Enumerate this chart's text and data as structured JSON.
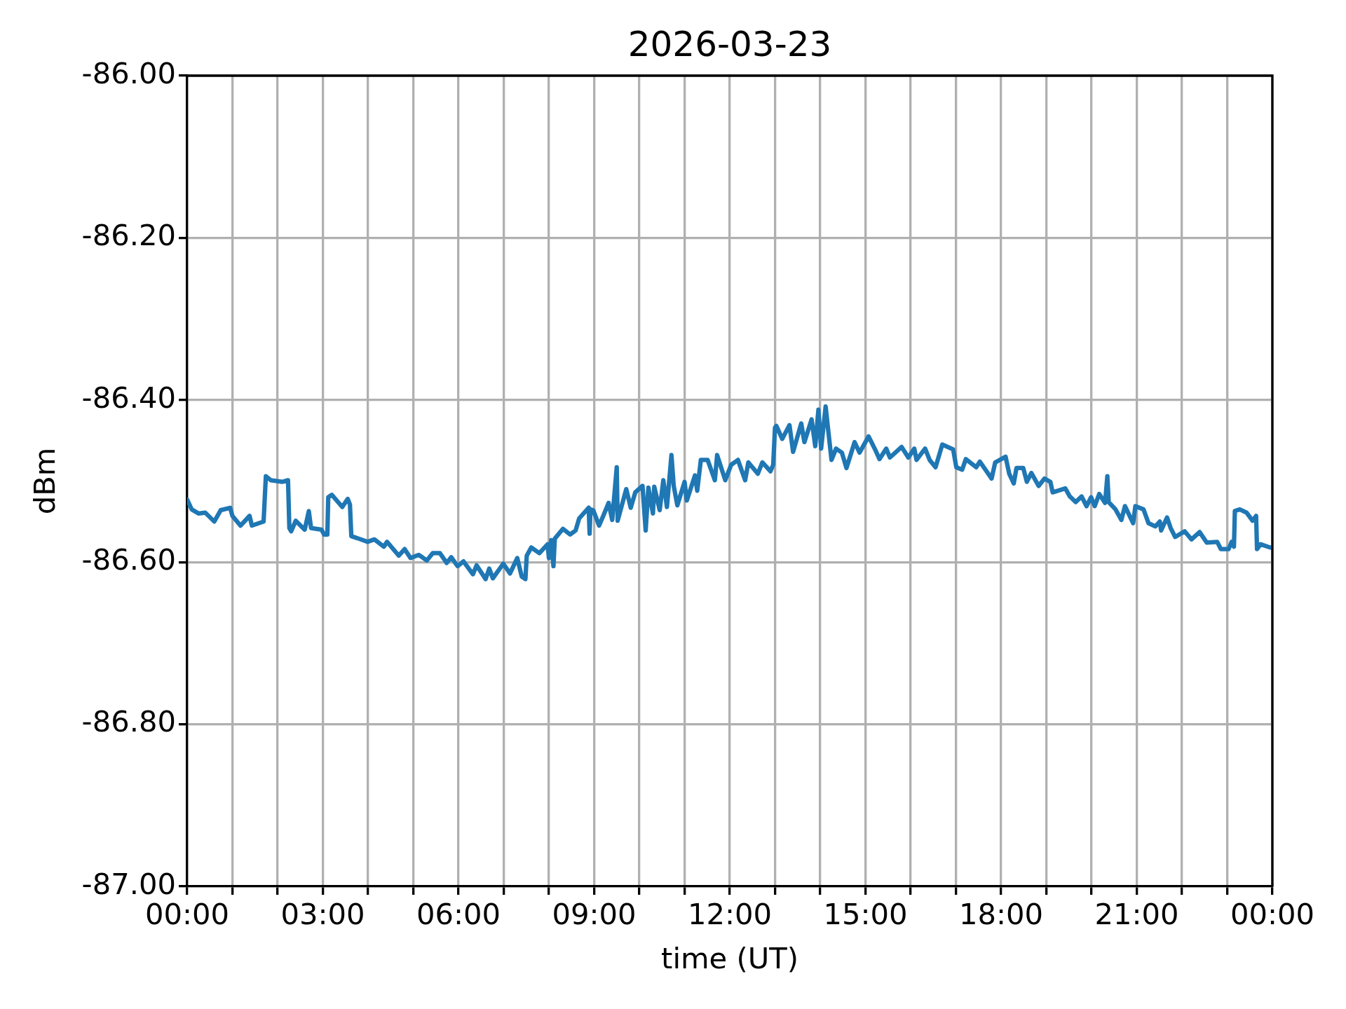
{
  "chart_data": {
    "type": "line",
    "title": "2026-03-23",
    "xlabel": "time (UT)",
    "ylabel": "dBm",
    "x": [
      0.0,
      0.1,
      0.25,
      0.4,
      0.6,
      0.74,
      0.95,
      1.0,
      1.18,
      1.38,
      1.43,
      1.69,
      1.74,
      1.85,
      2.1,
      2.23,
      2.26,
      2.3,
      2.4,
      2.6,
      2.69,
      2.74,
      2.97,
      3.03,
      3.1,
      3.12,
      3.2,
      3.43,
      3.55,
      3.6,
      3.63,
      3.79,
      3.99,
      4.14,
      4.35,
      4.42,
      4.68,
      4.81,
      4.94,
      5.12,
      5.3,
      5.43,
      5.59,
      5.74,
      5.84,
      5.98,
      6.11,
      6.32,
      6.4,
      6.6,
      6.68,
      6.76,
      6.99,
      7.14,
      7.3,
      7.4,
      7.48,
      7.51,
      7.61,
      7.79,
      7.97,
      8.0,
      8.05,
      8.1,
      8.13,
      8.31,
      8.47,
      8.59,
      8.67,
      8.88,
      8.9,
      8.92,
      8.98,
      9.11,
      9.21,
      9.32,
      9.4,
      9.5,
      9.52,
      9.71,
      9.81,
      9.91,
      10.07,
      10.14,
      10.2,
      10.3,
      10.33,
      10.45,
      10.53,
      10.61,
      10.71,
      10.76,
      10.84,
      11.0,
      11.05,
      11.23,
      11.28,
      11.36,
      11.51,
      11.67,
      11.72,
      11.9,
      12.03,
      12.18,
      12.34,
      12.41,
      12.62,
      12.72,
      12.9,
      12.96,
      13.0,
      13.03,
      13.16,
      13.32,
      13.4,
      13.58,
      13.65,
      13.81,
      13.89,
      13.96,
      14.02,
      14.12,
      14.17,
      14.25,
      14.35,
      14.48,
      14.58,
      14.76,
      14.87,
      15.07,
      15.23,
      15.31,
      15.46,
      15.54,
      15.8,
      15.95,
      16.08,
      16.13,
      16.32,
      16.42,
      16.55,
      16.7,
      16.94,
      17.01,
      17.14,
      17.22,
      17.45,
      17.53,
      17.79,
      17.87,
      18.1,
      18.18,
      18.28,
      18.34,
      18.49,
      18.57,
      18.67,
      18.83,
      18.96,
      19.09,
      19.14,
      19.42,
      19.52,
      19.65,
      19.78,
      19.89,
      19.99,
      20.07,
      20.17,
      20.3,
      20.35,
      20.38,
      20.53,
      20.66,
      20.74,
      20.92,
      20.97,
      21.15,
      21.26,
      21.41,
      21.51,
      21.54,
      21.67,
      21.75,
      21.85,
      22.06,
      22.21,
      22.39,
      22.55,
      22.78,
      22.86,
      23.03,
      23.1,
      23.15,
      23.17,
      23.28,
      23.43,
      23.56,
      23.64,
      23.66,
      23.74,
      23.95,
      24.0
    ],
    "values": [
      -86.523,
      -86.535,
      -86.54,
      -86.539,
      -86.55,
      -86.536,
      -86.533,
      -86.543,
      -86.555,
      -86.543,
      -86.555,
      -86.55,
      -86.494,
      -86.499,
      -86.501,
      -86.499,
      -86.558,
      -86.562,
      -86.549,
      -86.56,
      -86.537,
      -86.558,
      -86.56,
      -86.566,
      -86.566,
      -86.52,
      -86.517,
      -86.532,
      -86.522,
      -86.529,
      -86.568,
      -86.571,
      -86.575,
      -86.572,
      -86.581,
      -86.575,
      -86.592,
      -86.584,
      -86.595,
      -86.591,
      -86.598,
      -86.589,
      -86.589,
      -86.601,
      -86.594,
      -86.605,
      -86.599,
      -86.615,
      -86.604,
      -86.621,
      -86.608,
      -86.62,
      -86.602,
      -86.614,
      -86.595,
      -86.618,
      -86.621,
      -86.592,
      -86.582,
      -86.589,
      -86.578,
      -86.595,
      -86.573,
      -86.605,
      -86.571,
      -86.559,
      -86.566,
      -86.561,
      -86.546,
      -86.533,
      -86.565,
      -86.535,
      -86.536,
      -86.555,
      -86.542,
      -86.527,
      -86.548,
      -86.483,
      -86.549,
      -86.51,
      -86.533,
      -86.514,
      -86.506,
      -86.561,
      -86.508,
      -86.54,
      -86.507,
      -86.536,
      -86.499,
      -86.532,
      -86.468,
      -86.506,
      -86.53,
      -86.501,
      -86.524,
      -86.493,
      -86.512,
      -86.474,
      -86.474,
      -86.499,
      -86.468,
      -86.499,
      -86.48,
      -86.474,
      -86.499,
      -86.477,
      -86.491,
      -86.477,
      -86.488,
      -86.48,
      -86.434,
      -86.432,
      -86.448,
      -86.431,
      -86.464,
      -86.429,
      -86.452,
      -86.424,
      -86.457,
      -86.412,
      -86.46,
      -86.408,
      -86.434,
      -86.474,
      -86.46,
      -86.465,
      -86.484,
      -86.452,
      -86.465,
      -86.445,
      -86.463,
      -86.473,
      -86.46,
      -86.471,
      -86.458,
      -86.471,
      -86.46,
      -86.474,
      -86.46,
      -86.474,
      -86.483,
      -86.455,
      -86.461,
      -86.483,
      -86.486,
      -86.473,
      -86.483,
      -86.476,
      -86.497,
      -86.477,
      -86.47,
      -86.491,
      -86.503,
      -86.484,
      -86.484,
      -86.501,
      -86.49,
      -86.506,
      -86.497,
      -86.501,
      -86.514,
      -86.509,
      -86.519,
      -86.526,
      -86.519,
      -86.531,
      -86.52,
      -86.531,
      -86.516,
      -86.527,
      -86.494,
      -86.526,
      -86.535,
      -86.548,
      -86.531,
      -86.552,
      -86.531,
      -86.535,
      -86.552,
      -86.556,
      -86.55,
      -86.561,
      -86.545,
      -86.558,
      -86.569,
      -86.562,
      -86.572,
      -86.563,
      -86.576,
      -86.575,
      -86.584,
      -86.584,
      -86.575,
      -86.581,
      -86.537,
      -86.535,
      -86.539,
      -86.549,
      -86.543,
      -86.584,
      -86.578,
      -86.582,
      -86.582
    ],
    "color": "#1f77b4",
    "line_style": "solid",
    "xlim": [
      0,
      24
    ],
    "xticks": [
      {
        "value": 0,
        "label": "00:00"
      },
      {
        "value": 1,
        "label": null
      },
      {
        "value": 2,
        "label": null
      },
      {
        "value": 3,
        "label": "03:00"
      },
      {
        "value": 4,
        "label": null
      },
      {
        "value": 5,
        "label": null
      },
      {
        "value": 6,
        "label": "06:00"
      },
      {
        "value": 7,
        "label": null
      },
      {
        "value": 8,
        "label": null
      },
      {
        "value": 9,
        "label": "09:00"
      },
      {
        "value": 10,
        "label": null
      },
      {
        "value": 11,
        "label": null
      },
      {
        "value": 12,
        "label": "12:00"
      },
      {
        "value": 13,
        "label": null
      },
      {
        "value": 14,
        "label": null
      },
      {
        "value": 15,
        "label": "15:00"
      },
      {
        "value": 16,
        "label": null
      },
      {
        "value": 17,
        "label": null
      },
      {
        "value": 18,
        "label": "18:00"
      },
      {
        "value": 19,
        "label": null
      },
      {
        "value": 20,
        "label": null
      },
      {
        "value": 21,
        "label": "21:00"
      },
      {
        "value": 22,
        "label": null
      },
      {
        "value": 23,
        "label": null
      },
      {
        "value": 24,
        "label": "00:00"
      }
    ],
    "ylim": [
      -87,
      -86
    ],
    "yticks": [
      {
        "value": -87,
        "label": "-87.00"
      },
      {
        "value": -86.8,
        "label": "-86.80"
      },
      {
        "value": -86.6,
        "label": "-86.60"
      },
      {
        "value": -86.4,
        "label": "-86.40"
      },
      {
        "value": -86.2,
        "label": "-86.20"
      },
      {
        "value": -86,
        "label": "-86.00"
      }
    ],
    "grid": true
  }
}
